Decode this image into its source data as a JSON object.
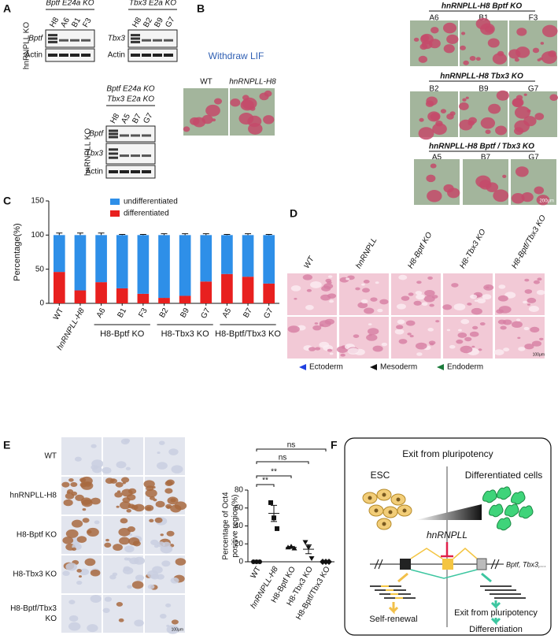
{
  "panel_labels": [
    "A",
    "B",
    "C",
    "D",
    "E",
    "F"
  ],
  "panel_a": {
    "side_labels": [
      "hnRNPLL KO",
      "hnRNPLL KO"
    ],
    "blots": [
      {
        "headers": [
          "Bptf E24a KO"
        ],
        "lanes": [
          "H8",
          "A6",
          "B1",
          "F3"
        ],
        "rows": [
          "Bptf",
          "Actin"
        ]
      },
      {
        "headers": [
          "Tbx3 E2a KO"
        ],
        "lanes": [
          "H8",
          "B2",
          "B9",
          "G7"
        ],
        "rows": [
          "Tbx3",
          "Actin"
        ]
      },
      {
        "headers": [
          "Bptf E24a KO",
          "Tbx3 E2a KO"
        ],
        "lanes": [
          "H8",
          "A5",
          "B7",
          "G7"
        ],
        "rows": [
          "Bptf",
          "Tbx3",
          "Actin"
        ]
      }
    ]
  },
  "panel_b": {
    "treatment": "Withdraw LIF",
    "controls": [
      "WT",
      "hnRNPLL-H8"
    ],
    "groups": [
      {
        "title": "hnRNPLL-H8 Bptf KO",
        "clones": [
          "A6",
          "B1",
          "F3"
        ]
      },
      {
        "title": "hnRNPLL-H8 Tbx3 KO",
        "clones": [
          "B2",
          "B9",
          "G7"
        ]
      },
      {
        "title": "hnRNPLL-H8 Bptf / Tbx3 KO",
        "clones": [
          "A5",
          "B7",
          "G7"
        ]
      }
    ],
    "scale_bar": "200μm"
  },
  "panel_d": {
    "columns": [
      "WT",
      "hnRNPLL",
      "H8-Bptf KO",
      "H8-Tbx3 KO",
      "H8-Bptf/Tbx3 KO"
    ],
    "legend": [
      "Ectoderm",
      "Mesoderm",
      "Endoderm"
    ],
    "scale_bar": "100μm"
  },
  "panel_e": {
    "rows": [
      [
        "WT"
      ],
      [
        "hnRNPLL-H8"
      ],
      [
        "H8-Bptf KO"
      ],
      [
        "H8-Tbx3 KO"
      ],
      [
        "H8-Bptf/Tbx3",
        "KO"
      ]
    ],
    "scale_bar": "100μm"
  },
  "panel_f": {
    "title": "Exit from pluripotency",
    "left": "ESC",
    "right": "Differentiated cells",
    "regulator": "hnRNPLL",
    "genes": "Bptf, Tbx3,...",
    "left_outcome": "Self-renewal",
    "right_outcomes": [
      "Exit from pluripotency",
      "Differentiation"
    ]
  },
  "chart_data": [
    {
      "type": "bar",
      "stacked": true,
      "ylabel": "Percentage(%)",
      "categories": [
        "WT",
        "hnRNPLL-H8",
        "A6",
        "B1",
        "F3",
        "B2",
        "B9",
        "G7",
        "A5",
        "B7",
        "G7"
      ],
      "groups": [
        "H8-Bptf KO",
        "H8-Tbx3 KO",
        "H8-Bptf/Tbx3 KO"
      ],
      "series": [
        {
          "name": "undifferentiated",
          "color": "#2e8fe8",
          "values": [
            54,
            81,
            69,
            78,
            86,
            92,
            89,
            68,
            57,
            61,
            71
          ],
          "errors": [
            3,
            3,
            3,
            1,
            1,
            2,
            2,
            2,
            1,
            2,
            1
          ]
        },
        {
          "name": "differentiated",
          "color": "#e8201f",
          "values": [
            46,
            19,
            31,
            22,
            14,
            8,
            11,
            32,
            43,
            39,
            29
          ],
          "errors": [
            4,
            5,
            5,
            2,
            2,
            3,
            4,
            3,
            2,
            2,
            3
          ]
        }
      ],
      "ylim": [
        0,
        150
      ],
      "yticks": [
        0,
        50,
        100,
        150
      ]
    },
    {
      "type": "scatter",
      "ylabel": [
        "Percentage of Oct4",
        "positive region(%)"
      ],
      "categories": [
        "WT",
        "hnRNPLL-H8",
        "H8-Bptf KO",
        "H8-Tbx3 KO",
        "H8-Bptf/Tbx3 KO"
      ],
      "points": [
        [
          0,
          0,
          0
        ],
        [
          66,
          49,
          37
        ],
        [
          16,
          17,
          15
        ],
        [
          22,
          16,
          4
        ],
        [
          0,
          0,
          0
        ]
      ],
      "means": [
        0,
        54,
        16,
        14,
        0
      ],
      "errors": [
        0,
        9,
        1,
        5,
        0
      ],
      "markers": [
        "circle",
        "square",
        "triangle",
        "triangle-down",
        "diamond"
      ],
      "color": "#111111",
      "annotations": [
        "**",
        "**",
        "ns",
        "ns"
      ],
      "ylim": [
        0,
        80
      ],
      "yticks": [
        0,
        20,
        40,
        60,
        80
      ]
    }
  ]
}
